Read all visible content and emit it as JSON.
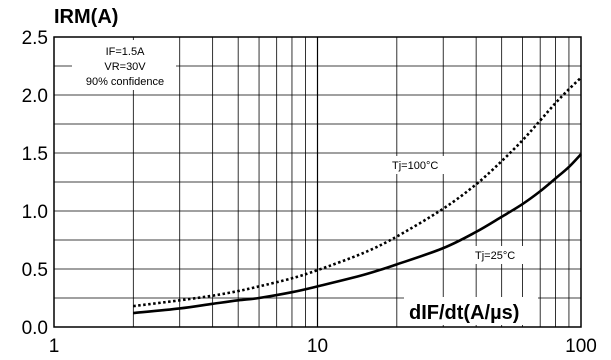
{
  "chart_data": {
    "type": "line",
    "ylabel": "IRM(A)",
    "xlabel": "dIF/dt(A/µs)",
    "x_scale": "log",
    "xlim": [
      1,
      100
    ],
    "ylim": [
      0.0,
      2.5
    ],
    "x_ticks": [
      "1",
      "10",
      "100"
    ],
    "y_ticks": [
      "0.0",
      "0.5",
      "1.0",
      "1.5",
      "2.0",
      "2.5"
    ],
    "grid": true,
    "conditions": [
      "IF=1.5A",
      "VR=30V",
      "90% confidence"
    ],
    "series": [
      {
        "name": "Tj=100°C",
        "style": "dotted",
        "x": [
          2,
          3,
          4,
          5,
          6,
          8,
          10,
          15,
          20,
          30,
          40,
          50,
          60,
          70,
          80,
          90,
          100
        ],
        "y": [
          0.18,
          0.23,
          0.27,
          0.31,
          0.35,
          0.42,
          0.49,
          0.64,
          0.78,
          1.02,
          1.23,
          1.43,
          1.61,
          1.78,
          1.93,
          2.05,
          2.15
        ]
      },
      {
        "name": "Tj=25°C",
        "style": "solid",
        "x": [
          2,
          3,
          4,
          5,
          6,
          8,
          10,
          15,
          20,
          30,
          40,
          50,
          60,
          70,
          80,
          90,
          100
        ],
        "y": [
          0.12,
          0.16,
          0.2,
          0.23,
          0.25,
          0.3,
          0.35,
          0.45,
          0.54,
          0.68,
          0.82,
          0.95,
          1.06,
          1.17,
          1.28,
          1.38,
          1.49
        ]
      }
    ]
  }
}
